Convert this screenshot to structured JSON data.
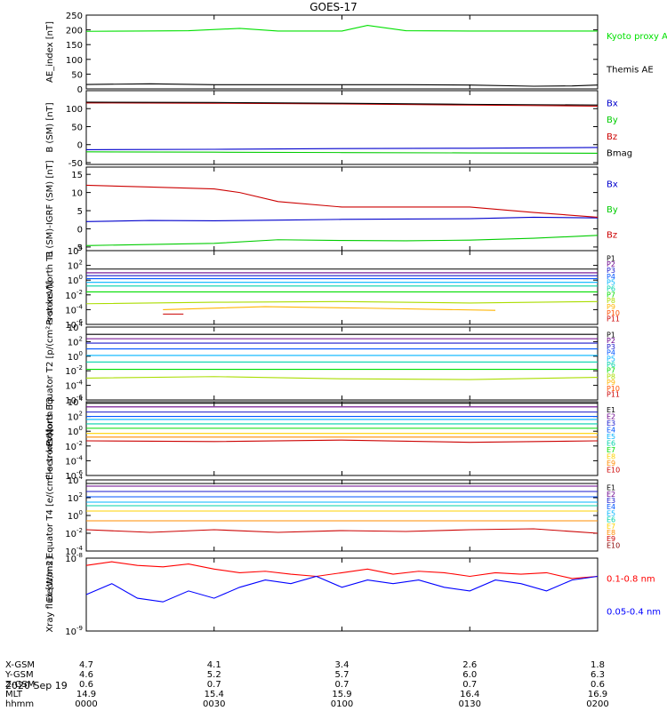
{
  "title": "GOES-17",
  "date": "2020 Sep 19",
  "time_axis": {
    "row_labels": [
      "X-GSM",
      "Y-GSM",
      "Z-GSM",
      "MLT",
      "hhmm"
    ],
    "columns": [
      {
        "X-GSM": "4.7",
        "Y-GSM": "4.6",
        "Z-GSM": "0.6",
        "MLT": "14.9",
        "hhmm": "0000"
      },
      {
        "X-GSM": "4.1",
        "Y-GSM": "5.2",
        "Z-GSM": "0.7",
        "MLT": "15.4",
        "hhmm": "0030"
      },
      {
        "X-GSM": "3.4",
        "Y-GSM": "5.7",
        "Z-GSM": "0.7",
        "MLT": "15.9",
        "hhmm": "0100"
      },
      {
        "X-GSM": "2.6",
        "Y-GSM": "6.0",
        "Z-GSM": "0.7",
        "MLT": "16.4",
        "hhmm": "0130"
      },
      {
        "X-GSM": "1.8",
        "Y-GSM": "6.3",
        "Z-GSM": "0.6",
        "MLT": "16.9",
        "hhmm": "0200"
      }
    ]
  },
  "chart_data": [
    {
      "type": "line",
      "ylabel": "AE_index [nT]",
      "ylim": [
        0,
        250
      ],
      "yticks": [
        "0",
        "50",
        "100",
        "150",
        "200",
        "250"
      ],
      "series": [
        {
          "name": "Kyoto proxy AE",
          "color": "#00e000",
          "x": [
            0,
            0.2,
            0.4,
            0.6,
            0.75,
            1.0,
            1.1,
            1.25,
            1.5,
            1.75,
            2.0
          ],
          "values": [
            195,
            196,
            197,
            205,
            196,
            196,
            215,
            197,
            196,
            196,
            196
          ]
        },
        {
          "name": "Themis AE",
          "color": "#000000",
          "x": [
            0,
            0.25,
            0.5,
            0.75,
            1.0,
            1.25,
            1.5,
            1.75,
            1.9,
            2.0
          ],
          "values": [
            15,
            17,
            14,
            14,
            14,
            14,
            13,
            9,
            10,
            13
          ]
        }
      ]
    },
    {
      "type": "line",
      "ylabel": "B (SM) [nT]",
      "ylim": [
        -55,
        150
      ],
      "yticks": [
        "-50",
        "0",
        "50",
        "100"
      ],
      "series": [
        {
          "name": "Bx",
          "color": "#0000cc",
          "x": [
            0,
            0.5,
            1.0,
            1.5,
            2.0
          ],
          "values": [
            -14,
            -13,
            -11,
            -10,
            -8
          ]
        },
        {
          "name": "By",
          "color": "#00cc00",
          "x": [
            0,
            0.5,
            1.0,
            1.5,
            2.0
          ],
          "values": [
            -20,
            -21,
            -22,
            -23,
            -24
          ]
        },
        {
          "name": "Bz",
          "color": "#cc0000",
          "x": [
            0,
            0.5,
            1.0,
            1.5,
            2.0
          ],
          "values": [
            116,
            115,
            113,
            110,
            107
          ]
        },
        {
          "name": "Bmag",
          "color": "#000000",
          "x": [
            0,
            0.5,
            1.0,
            1.5,
            2.0
          ],
          "values": [
            118,
            117,
            115,
            112,
            110
          ]
        }
      ]
    },
    {
      "type": "line",
      "ylabel": "B (SM)-IGRF (SM) [nT]",
      "ylim": [
        -6,
        17
      ],
      "yticks": [
        "-5",
        "0",
        "5",
        "10",
        "15"
      ],
      "series": [
        {
          "name": "Bx",
          "color": "#0000cc",
          "x": [
            0,
            0.25,
            0.5,
            0.75,
            1.0,
            1.25,
            1.5,
            1.75,
            2.0
          ],
          "values": [
            2,
            2.3,
            2.2,
            2.4,
            2.6,
            2.7,
            2.8,
            3.2,
            3.0
          ]
        },
        {
          "name": "By",
          "color": "#00cc00",
          "x": [
            0,
            0.25,
            0.5,
            0.75,
            1.0,
            1.25,
            1.5,
            1.75,
            2.0
          ],
          "values": [
            -4.6,
            -4.3,
            -4.0,
            -3.0,
            -3.2,
            -3.3,
            -3.1,
            -2.6,
            -1.8
          ]
        },
        {
          "name": "Bz",
          "color": "#cc0000",
          "x": [
            0,
            0.25,
            0.5,
            0.6,
            0.75,
            1.0,
            1.25,
            1.5,
            1.75,
            2.0
          ],
          "values": [
            12,
            11.5,
            11,
            10,
            7.5,
            6,
            6,
            6,
            4.5,
            3.2
          ]
        }
      ]
    },
    {
      "type": "line",
      "scale": "log",
      "ylabel": "Protons North T1",
      "ylim": [
        -6,
        4
      ],
      "ytick_exp": [
        "4",
        "2",
        "0",
        "-2",
        "-4",
        "-6"
      ],
      "series": [
        {
          "name": "P1",
          "color": "#000000",
          "x": [
            0,
            2
          ],
          "values": [
            1.5,
            1.5
          ]
        },
        {
          "name": "P2",
          "color": "#6a008c",
          "x": [
            0,
            2
          ],
          "values": [
            1.0,
            1.0
          ]
        },
        {
          "name": "P3",
          "color": "#1a1acc",
          "x": [
            0,
            2
          ],
          "values": [
            0.6,
            0.6
          ]
        },
        {
          "name": "P4",
          "color": "#0055ff",
          "x": [
            0,
            2
          ],
          "values": [
            0.2,
            0.2
          ]
        },
        {
          "name": "P5",
          "color": "#00b4ff",
          "x": [
            0,
            2
          ],
          "values": [
            -0.3,
            -0.3
          ]
        },
        {
          "name": "P6",
          "color": "#00d2aa",
          "x": [
            0,
            2
          ],
          "values": [
            -0.8,
            -0.8
          ]
        },
        {
          "name": "P7",
          "color": "#00dd00",
          "x": [
            0,
            2
          ],
          "values": [
            -1.6,
            -1.6
          ]
        },
        {
          "name": "P8",
          "color": "#aadd00",
          "x": [
            0,
            0.5,
            1.0,
            1.5,
            2.0
          ],
          "values": [
            -3.2,
            -3.0,
            -2.9,
            -3.1,
            -2.9
          ]
        },
        {
          "name": "P9",
          "color": "#ffb400",
          "x": [
            0.3,
            0.7,
            1.1,
            1.6
          ],
          "values": [
            -4.0,
            -3.6,
            -3.8,
            -4.1
          ]
        },
        {
          "name": "P10",
          "color": "#ff5000",
          "x": [],
          "values": []
        },
        {
          "name": "P11",
          "color": "#cc0000",
          "x": [
            0.3,
            0.38
          ],
          "values": [
            -4.6,
            -4.6
          ]
        }
      ]
    },
    {
      "type": "line",
      "scale": "log",
      "ylabel": "Protons Equator T2 [p/(cm²-s-sr-keV)]",
      "ylim": [
        -6,
        4
      ],
      "ytick_exp": [
        "4",
        "2",
        "0",
        "-2",
        "-4",
        "-6"
      ],
      "series": [
        {
          "name": "P1",
          "color": "#000000",
          "x": [
            0,
            2
          ],
          "values": [
            3,
            3
          ]
        },
        {
          "name": "P2",
          "color": "#6a008c",
          "x": [
            0,
            2
          ],
          "values": [
            2.4,
            2.4
          ]
        },
        {
          "name": "P3",
          "color": "#1a1acc",
          "x": [
            0,
            2
          ],
          "values": [
            1.8,
            1.8
          ]
        },
        {
          "name": "P4",
          "color": "#0055ff",
          "x": [
            0,
            2
          ],
          "values": [
            1.0,
            1.0
          ]
        },
        {
          "name": "P5",
          "color": "#00b4ff",
          "x": [
            0,
            2
          ],
          "values": [
            0.1,
            0.1
          ]
        },
        {
          "name": "P6",
          "color": "#00d2aa",
          "x": [
            0,
            2
          ],
          "values": [
            -0.8,
            -0.8
          ]
        },
        {
          "name": "P7",
          "color": "#00dd00",
          "x": [
            0,
            2
          ],
          "values": [
            -1.8,
            -1.8
          ]
        },
        {
          "name": "P8",
          "color": "#aadd00",
          "x": [
            0,
            0.5,
            1.0,
            1.5,
            2.0
          ],
          "values": [
            -3.0,
            -2.8,
            -3.1,
            -3.2,
            -2.9
          ]
        },
        {
          "name": "P9",
          "color": "#ffb400",
          "x": [],
          "values": []
        },
        {
          "name": "P10",
          "color": "#ff5000",
          "x": [],
          "values": []
        },
        {
          "name": "P11",
          "color": "#cc0000",
          "x": [],
          "values": []
        }
      ]
    },
    {
      "type": "line",
      "scale": "log",
      "ylabel": "Electrons North T3",
      "ylim": [
        -6,
        4
      ],
      "ytick_exp": [
        "4",
        "2",
        "0",
        "-2",
        "-4",
        "-6"
      ],
      "series": [
        {
          "name": "E1",
          "color": "#000000",
          "x": [
            0,
            2
          ],
          "values": [
            3.8,
            3.8
          ]
        },
        {
          "name": "E2",
          "color": "#6a008c",
          "x": [
            0,
            2
          ],
          "values": [
            3.3,
            3.3
          ]
        },
        {
          "name": "E3",
          "color": "#1a1acc",
          "x": [
            0,
            2
          ],
          "values": [
            2.6,
            2.6
          ]
        },
        {
          "name": "E4",
          "color": "#0055ff",
          "x": [
            0,
            2
          ],
          "values": [
            2.0,
            2.0
          ]
        },
        {
          "name": "E5",
          "color": "#00b4ff",
          "x": [
            0,
            2
          ],
          "values": [
            1.6,
            1.6
          ]
        },
        {
          "name": "E6",
          "color": "#00d2aa",
          "x": [
            0,
            2
          ],
          "values": [
            1.0,
            1.0
          ]
        },
        {
          "name": "E7",
          "color": "#00dd00",
          "x": [
            0,
            2
          ],
          "values": [
            0.4,
            0.4
          ]
        },
        {
          "name": "E8",
          "color": "#ffd200",
          "x": [
            0,
            2
          ],
          "values": [
            -0.3,
            -0.3
          ]
        },
        {
          "name": "E9",
          "color": "#ff8c00",
          "x": [
            0,
            2
          ],
          "values": [
            -0.8,
            -0.8
          ]
        },
        {
          "name": "E10",
          "color": "#cc0000",
          "x": [
            0,
            0.5,
            1.0,
            1.5,
            2.0
          ],
          "values": [
            -1.3,
            -1.4,
            -1.2,
            -1.5,
            -1.3
          ]
        }
      ]
    },
    {
      "type": "line",
      "scale": "log",
      "ylabel": "Electrons Equator T4 [e/(cm²-s-sr-keV)]",
      "ylim": [
        -4,
        4
      ],
      "ytick_exp": [
        "4",
        "2",
        "0",
        "-2",
        "-4"
      ],
      "series": [
        {
          "name": "E1",
          "color": "#000000",
          "x": [
            0,
            2
          ],
          "values": [
            3.6,
            3.6
          ]
        },
        {
          "name": "E2",
          "color": "#6a008c",
          "x": [
            0,
            2
          ],
          "values": [
            3.3,
            3.3
          ]
        },
        {
          "name": "E3",
          "color": "#1a1acc",
          "x": [
            0,
            2
          ],
          "values": [
            2.7,
            2.7
          ]
        },
        {
          "name": "E4",
          "color": "#0055ff",
          "x": [
            0,
            2
          ],
          "values": [
            2.1,
            2.1
          ]
        },
        {
          "name": "E5",
          "color": "#00b4ff",
          "x": [
            0,
            2
          ],
          "values": [
            1.5,
            1.5
          ]
        },
        {
          "name": "E6",
          "color": "#00d2aa",
          "x": [
            0,
            2
          ],
          "values": [
            1.1,
            1.1
          ]
        },
        {
          "name": "E7",
          "color": "#ffd200",
          "x": [
            0,
            2
          ],
          "values": [
            0.5,
            0.5
          ]
        },
        {
          "name": "E8",
          "color": "#ff8c00",
          "x": [
            0,
            2
          ],
          "values": [
            -0.6,
            -0.6
          ]
        },
        {
          "name": "E9",
          "color": "#cc0000",
          "x": [
            0,
            0.25,
            0.5,
            0.75,
            1.0,
            1.25,
            1.5,
            1.75,
            2.0
          ],
          "values": [
            -1.6,
            -1.9,
            -1.6,
            -1.9,
            -1.7,
            -1.8,
            -1.6,
            -1.5,
            -2.0
          ]
        },
        {
          "name": "E10",
          "color": "#880000",
          "x": [],
          "values": []
        }
      ]
    },
    {
      "type": "line",
      "scale": "log",
      "ylabel": "Xray flux [W/m2]",
      "ylim": [
        -9,
        -8
      ],
      "ytick_exp": [
        "-8",
        "-9"
      ],
      "series": [
        {
          "name": "0.1-0.8 nm",
          "color": "#ff0000",
          "x": [
            0,
            0.1,
            0.2,
            0.3,
            0.4,
            0.5,
            0.6,
            0.7,
            0.8,
            0.9,
            1.0,
            1.1,
            1.2,
            1.3,
            1.4,
            1.5,
            1.6,
            1.7,
            1.8,
            1.9,
            2.0
          ],
          "values": [
            -8.1,
            -8.05,
            -8.1,
            -8.12,
            -8.08,
            -8.15,
            -8.2,
            -8.18,
            -8.22,
            -8.25,
            -8.2,
            -8.15,
            -8.22,
            -8.18,
            -8.2,
            -8.25,
            -8.2,
            -8.22,
            -8.2,
            -8.28,
            -8.25
          ]
        },
        {
          "name": "0.05-0.4 nm",
          "color": "#0000ff",
          "x": [
            0,
            0.1,
            0.2,
            0.3,
            0.4,
            0.5,
            0.6,
            0.7,
            0.8,
            0.9,
            1.0,
            1.1,
            1.2,
            1.3,
            1.4,
            1.5,
            1.6,
            1.7,
            1.8,
            1.9,
            2.0
          ],
          "values": [
            -8.5,
            -8.35,
            -8.55,
            -8.6,
            -8.45,
            -8.55,
            -8.4,
            -8.3,
            -8.35,
            -8.25,
            -8.4,
            -8.3,
            -8.35,
            -8.3,
            -8.4,
            -8.45,
            -8.3,
            -8.35,
            -8.45,
            -8.3,
            -8.25
          ]
        }
      ]
    }
  ]
}
